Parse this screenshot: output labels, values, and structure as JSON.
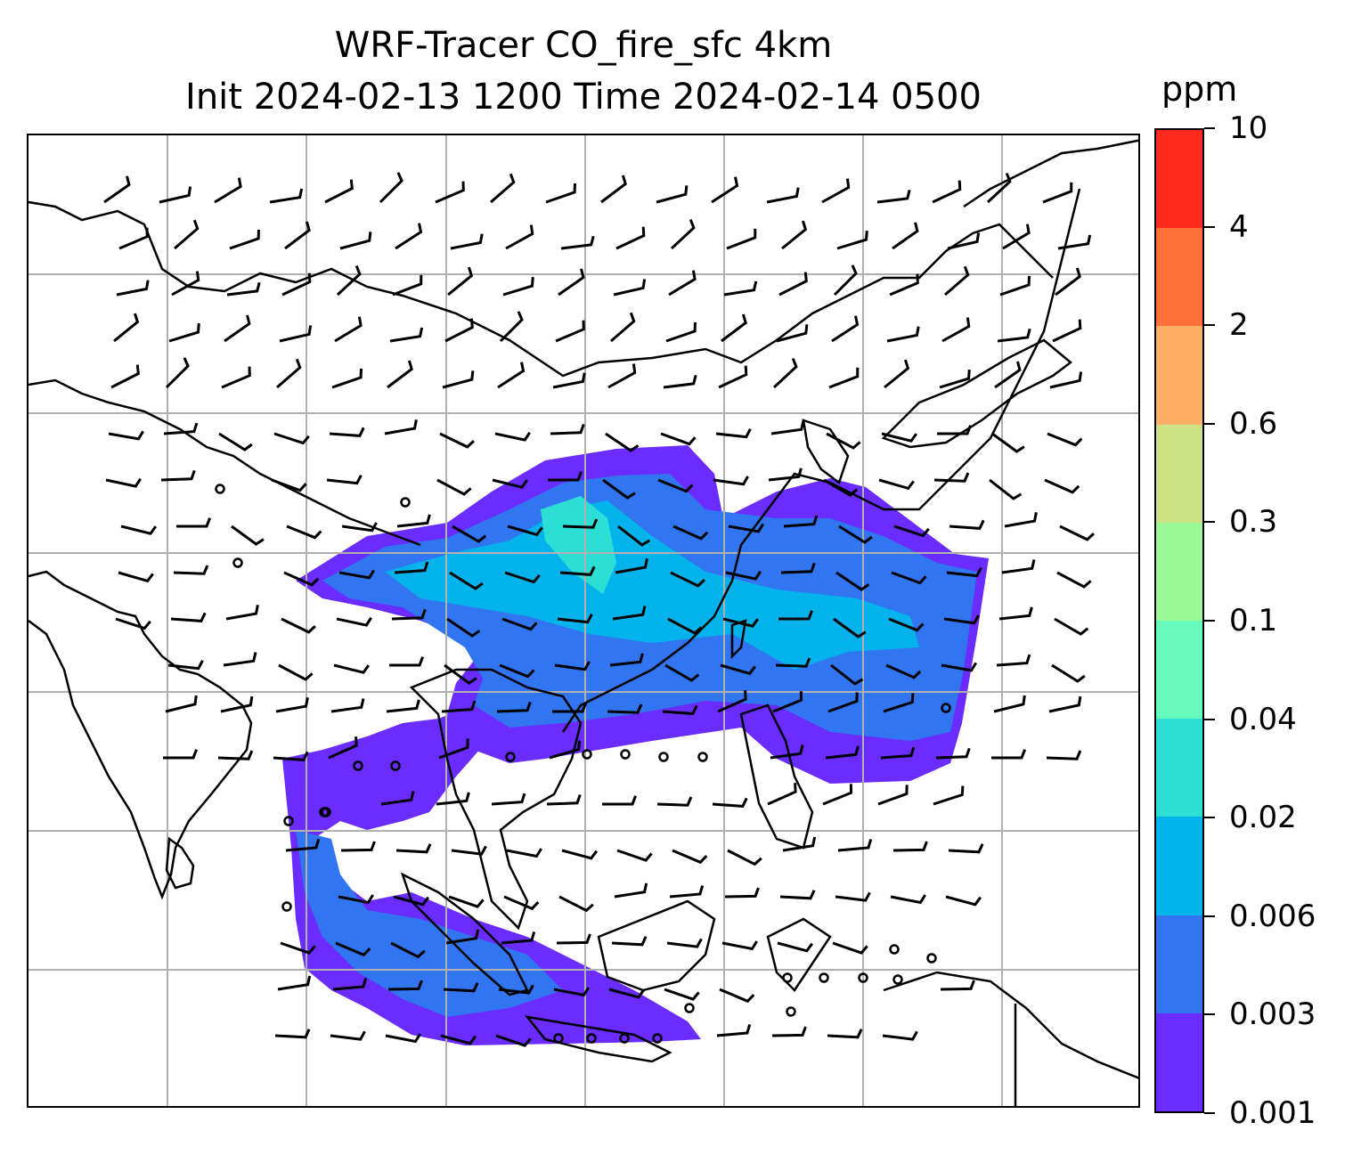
{
  "title": {
    "line1": "WRF-Tracer CO_fire_sfc 4km",
    "line2": "Init 2024-02-13 1200 Time 2024-02-14 0500"
  },
  "colorbar": {
    "unit": "ppm",
    "levels": [
      "0.001",
      "0.003",
      "0.006",
      "0.02",
      "0.04",
      "0.1",
      "0.3",
      "0.6",
      "2",
      "4",
      "10"
    ],
    "colors": [
      "#6a2cff",
      "#3175f0",
      "#05b3ec",
      "#2cdfd5",
      "#66fbbc",
      "#9afa98",
      "#cee386",
      "#fdb065",
      "#ff7139",
      "#ff2a1c"
    ]
  },
  "map": {
    "gridlines": true,
    "coastline_color": "#000000",
    "grid_color": "#b0b0b0",
    "wind_barbs": true
  }
}
